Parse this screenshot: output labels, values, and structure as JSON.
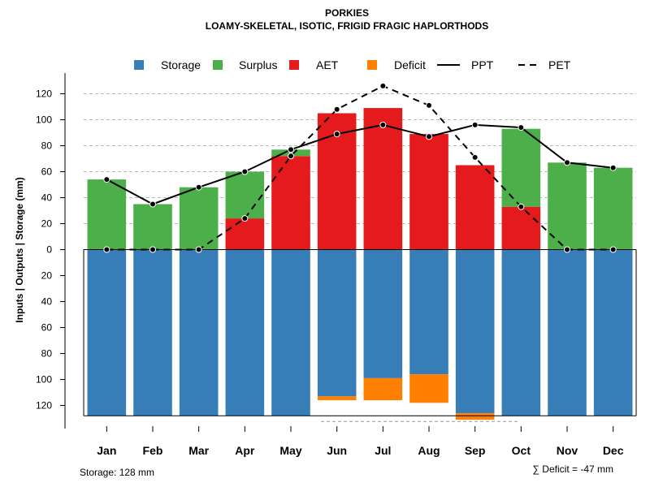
{
  "chart_data": {
    "type": "bar",
    "title": "PORKIES",
    "subtitle": "LOAMY-SKELETAL, ISOTIC, FRIGID FRAGIC HAPLORTHODS",
    "ylabel": "Inputs | Outputs | Storage    (mm)",
    "ylim": [
      -128,
      128
    ],
    "yticks": [
      120,
      100,
      80,
      60,
      40,
      20,
      0,
      20,
      40,
      60,
      80,
      100,
      120
    ],
    "categories": [
      "Jan",
      "Feb",
      "Mar",
      "Apr",
      "May",
      "Jun",
      "Jul",
      "Aug",
      "Sep",
      "Oct",
      "Nov",
      "Dec"
    ],
    "storage_capacity": 128,
    "series": [
      {
        "name": "Storage",
        "color": "#377eb8",
        "values": [
          128,
          128,
          128,
          128,
          128,
          113,
          99,
          96,
          126,
          128,
          128,
          128
        ]
      },
      {
        "name": "Surplus",
        "color": "#4daf4a",
        "values": [
          54,
          35,
          48,
          36,
          5,
          0,
          0,
          0,
          0,
          60,
          67,
          63
        ]
      },
      {
        "name": "AET",
        "color": "#e41a1c",
        "values": [
          0,
          0,
          0,
          24,
          72,
          105,
          109,
          89,
          65,
          33,
          0,
          0
        ]
      },
      {
        "name": "Deficit",
        "color": "#ff7f00",
        "values": [
          0,
          0,
          0,
          0,
          0,
          3,
          17,
          22,
          5,
          0,
          0,
          0
        ]
      },
      {
        "name": "PPT",
        "color": "#000000",
        "line": "solid",
        "values": [
          54,
          35,
          48,
          60,
          77,
          89,
          96,
          87,
          96,
          94,
          67,
          63
        ]
      },
      {
        "name": "PET",
        "color": "#000000",
        "line": "dashed",
        "values": [
          0,
          0,
          0,
          24,
          72,
          108,
          126,
          111,
          71,
          33,
          0,
          0
        ]
      }
    ],
    "legend": [
      "Storage",
      "Surplus",
      "AET",
      "Deficit",
      "PPT",
      "PET"
    ],
    "grid": true,
    "legend_position": "top"
  },
  "footer": {
    "storage": "Storage: 128 mm",
    "deficit": "∑ Deficit = -47 mm"
  }
}
